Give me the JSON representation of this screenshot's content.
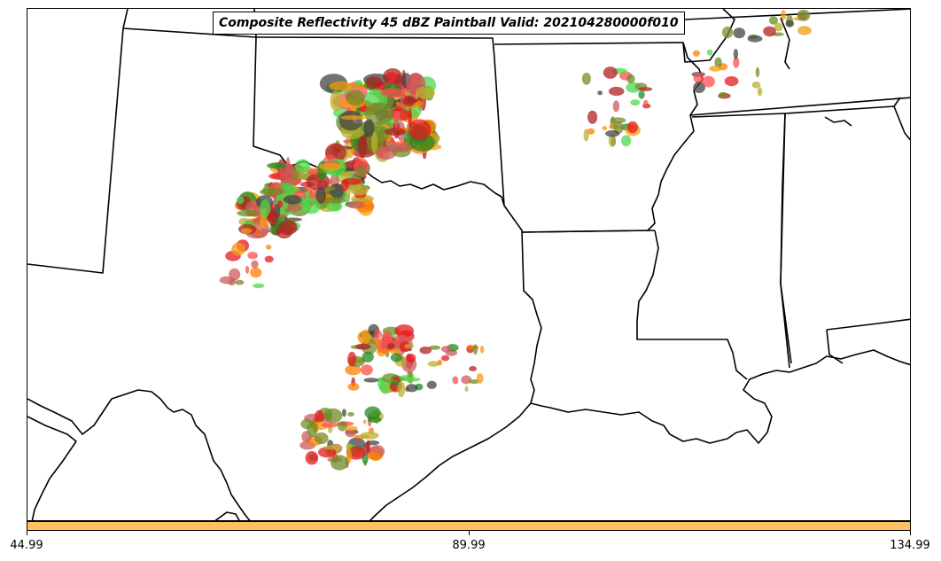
{
  "title": "Composite Reflectivity 45 dBZ Paintball Valid: 202104280000f010",
  "colorbar": {
    "color": "#ffc060",
    "ticks": [
      "44.99",
      "89.99",
      "134.99"
    ]
  },
  "member_colors": [
    "#e41a1c",
    "#ff7f00",
    "#b8b030",
    "#4dd84d",
    "#b22222",
    "#6b8e23",
    "#228b22",
    "#444444",
    "#f39c12",
    "#cd5c5c",
    "#ff4d4d",
    "#7a8b2a"
  ],
  "map_style": {
    "border_color": "#000000",
    "background": "#ffffff"
  }
}
